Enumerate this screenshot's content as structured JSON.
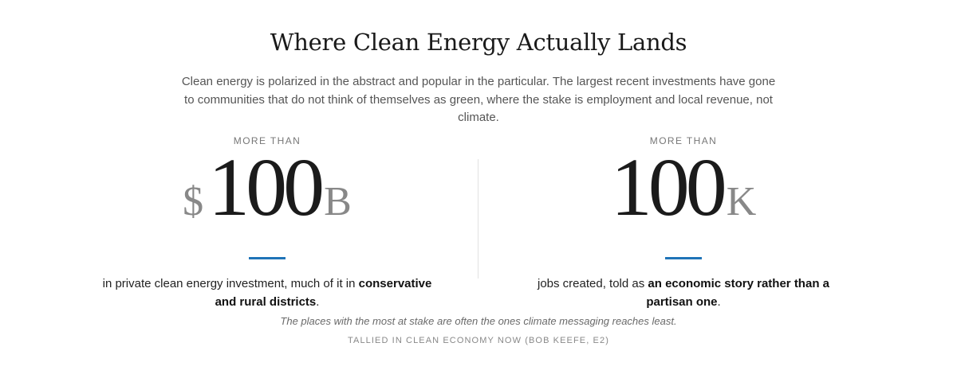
{
  "title": "Where Clean Energy Actually Lands",
  "intro": "Clean energy is polarized in the abstract and popular in the particular. The largest recent investments have gone to communities that do not think of themselves as green, where the stake is employment and local revenue, not climate.",
  "stats": [
    {
      "eyebrow": "MORE THAN",
      "prefix": "$",
      "number": "100",
      "suffix": "B",
      "desc_before": "in private clean energy investment, much of it in ",
      "desc_bold": "conservative and rural districts",
      "desc_after": "."
    },
    {
      "eyebrow": "MORE THAN",
      "prefix": "",
      "number": "100",
      "suffix": "K",
      "desc_before": "jobs created, told as ",
      "desc_bold": "an economic story rather than a partisan one",
      "desc_after": "."
    }
  ],
  "takeaway": "The places with the most at stake are often the ones climate messaging reaches least.",
  "source": "TALLIED IN CLEAN ECONOMY NOW (BOB KEEFE, E2)",
  "colors": {
    "accent_rule": "#1f74b8",
    "muted_text": "#888888"
  }
}
